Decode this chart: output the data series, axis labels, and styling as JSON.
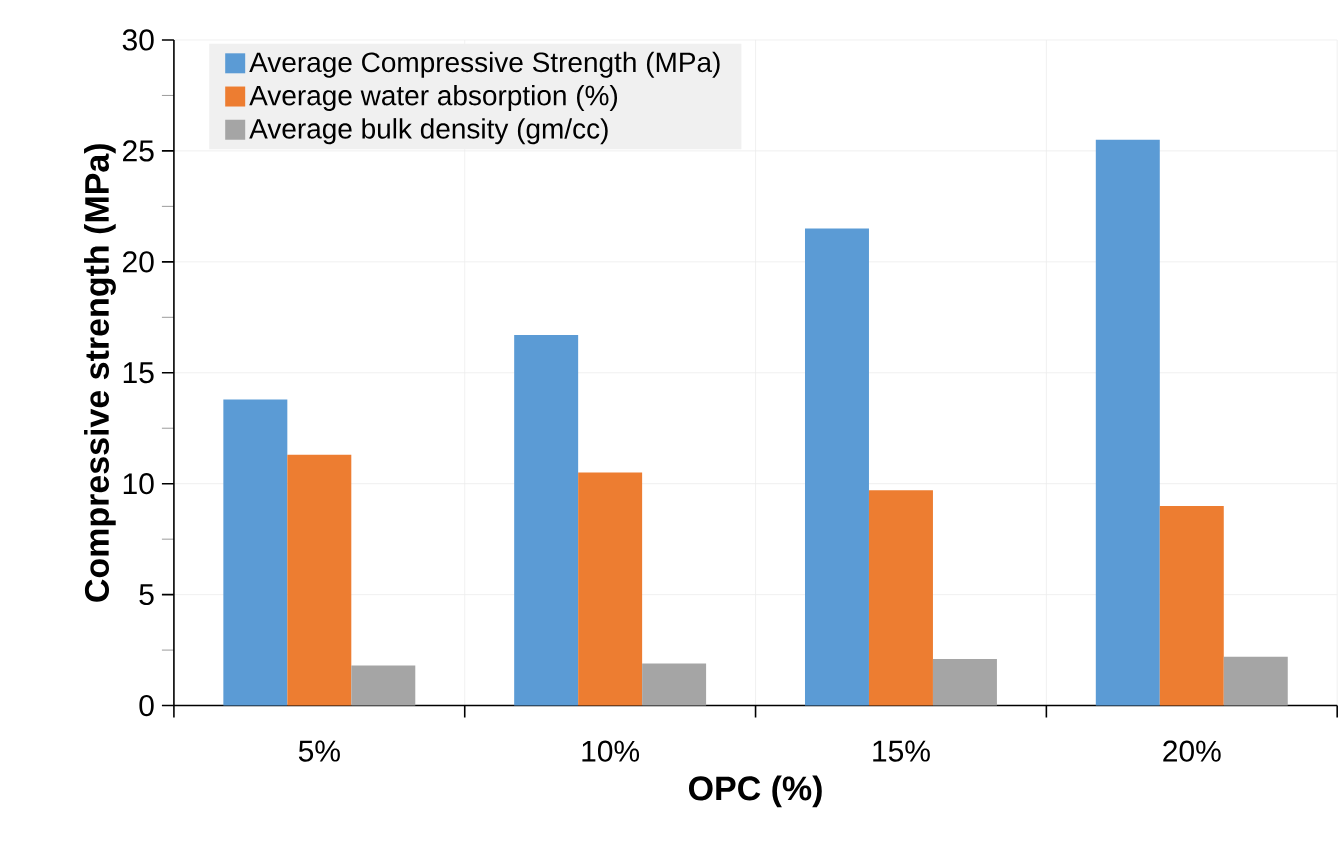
{
  "chart_data": {
    "type": "bar",
    "xlabel": "OPC (%)",
    "ylabel": "Compressive strength (MPa)",
    "categories": [
      "5%",
      "10%",
      "15%",
      "20%"
    ],
    "series": [
      {
        "name": "Average Compressive Strength (MPa)",
        "color": "#5b9bd5",
        "values": [
          13.8,
          16.7,
          21.5,
          25.5
        ]
      },
      {
        "name": "Average water absorption (%)",
        "color": "#ed7d31",
        "values": [
          11.3,
          10.5,
          9.7,
          9.0
        ]
      },
      {
        "name": "Average bulk density  (gm/cc)",
        "color": "#a5a5a5",
        "values": [
          1.8,
          1.9,
          2.1,
          2.2
        ]
      }
    ],
    "ylim": [
      0,
      30
    ],
    "yticks": [
      0,
      5,
      10,
      15,
      20,
      25,
      30
    ],
    "grid": true,
    "legend": "top left"
  }
}
